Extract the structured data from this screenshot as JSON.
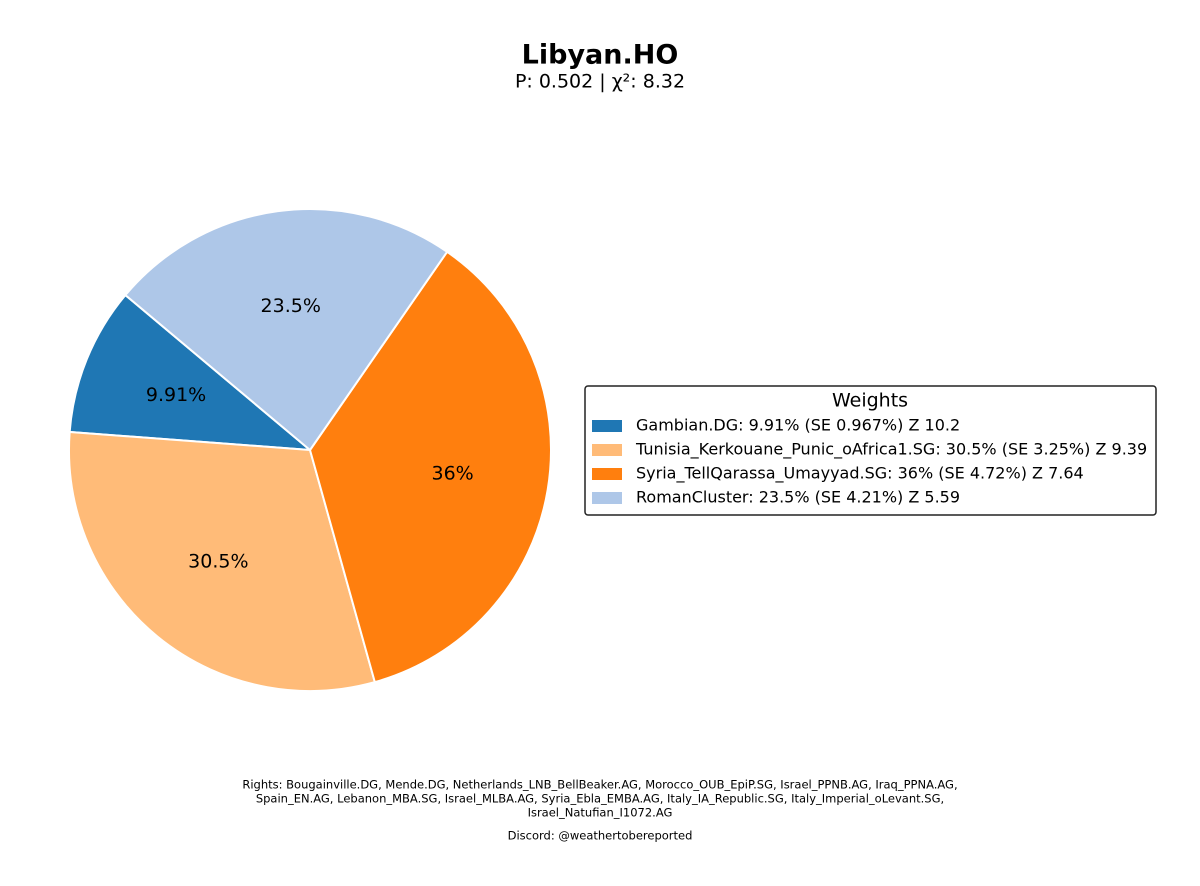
{
  "chart_data": {
    "type": "pie",
    "title": "Libyan.HO",
    "subtitle": "P: 0.502 | χ²: 8.32",
    "categories": [
      "Gambian.DG",
      "Tunisia_Kerkouane_Punic_oAfrica1.SG",
      "Syria_TellQarassa_Umayyad.SG",
      "RomanCluster"
    ],
    "values": [
      9.91,
      30.5,
      36,
      23.5
    ],
    "value_labels": [
      "9.91%",
      "30.5%",
      "36%",
      "23.5%"
    ],
    "colors": [
      "#1f77b4",
      "#ffbb78",
      "#ff7f0e",
      "#aec7e8"
    ],
    "startangle": 140,
    "legend_title": "Weights",
    "legend_labels": [
      "Gambian.DG: 9.91% (SE 0.967%) Z 10.2",
      "Tunisia_Kerkouane_Punic_oAfrica1.SG: 30.5% (SE 3.25%) Z 9.39",
      "Syria_TellQarassa_Umayyad.SG: 36% (SE 4.72%) Z 7.64",
      "RomanCluster: 23.5% (SE 4.21%) Z 5.59"
    ],
    "legend_position": "right",
    "footnote_lines": [
      "Rights: Bougainville.DG, Mende.DG, Netherlands_LNB_BellBeaker.AG, Morocco_OUB_EpiP.SG, Israel_PPNB.AG, Iraq_PPNA.AG,",
      "Spain_EN.AG, Lebanon_MBA.SG, Israel_MLBA.AG, Syria_Ebla_EMBA.AG, Italy_IA_Republic.SG, Italy_Imperial_oLevant.SG,",
      "Israel_Natufian_I1072.AG"
    ],
    "credit": "Discord: @weathertobereported"
  }
}
